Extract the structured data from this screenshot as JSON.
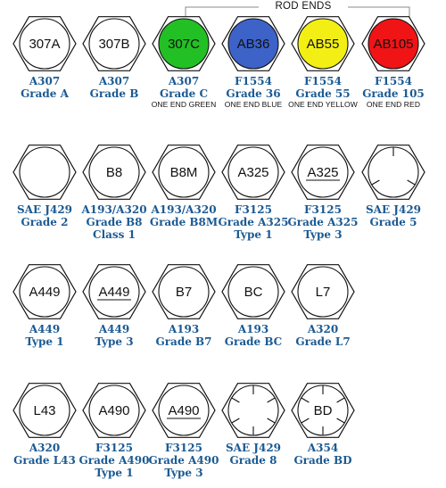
{
  "group_title": "ROD ENDS",
  "colors": {
    "caption": "#1b5a93",
    "green": "#22c025",
    "blue": "#3d62c8",
    "yellow": "#f3ef14",
    "red": "#f01416"
  },
  "markings": [
    {
      "code": "307A",
      "shape": "hex",
      "lines": [
        "A307",
        "Grade A"
      ]
    },
    {
      "code": "307B",
      "shape": "hex",
      "lines": [
        "A307",
        "Grade B"
      ]
    },
    {
      "code": "307C",
      "shape": "circle",
      "fill": "#22c025",
      "lines": [
        "A307",
        "Grade C"
      ],
      "note": "ONE END GREEN"
    },
    {
      "code": "AB36",
      "shape": "circle",
      "fill": "#3d62c8",
      "lines": [
        "F1554",
        "Grade 36"
      ],
      "note": "ONE END BLUE"
    },
    {
      "code": "AB55",
      "shape": "circle",
      "fill": "#f3ef14",
      "lines": [
        "F1554",
        "Grade 55"
      ],
      "note": "ONE END YELLOW"
    },
    {
      "code": "AB105",
      "shape": "circle",
      "fill": "#f01416",
      "lines": [
        "F1554",
        "Grade 105"
      ],
      "note": "ONE END RED"
    },
    {
      "code": "",
      "shape": "hex",
      "lines": [
        "SAE J429",
        "Grade 2"
      ]
    },
    {
      "code": "B8",
      "shape": "hex",
      "lines": [
        "A193/A320",
        "Grade B8",
        "Class 1"
      ]
    },
    {
      "code": "B8M",
      "shape": "hex",
      "lines": [
        "A193/A320",
        "Grade B8M"
      ]
    },
    {
      "code": "A325",
      "shape": "hex",
      "lines": [
        "F3125",
        "Grade A325",
        "Type 1"
      ]
    },
    {
      "code": "A325",
      "shape": "hex",
      "underline": true,
      "lines": [
        "F3125",
        "Grade A325",
        "Type 3"
      ]
    },
    {
      "code": "",
      "shape": "hex",
      "radial": 3,
      "lines": [
        "SAE J429",
        "Grade 5"
      ]
    },
    {
      "code": "A449",
      "shape": "hex",
      "lines": [
        "A449",
        "Type 1"
      ]
    },
    {
      "code": "A449",
      "shape": "hex",
      "underline": true,
      "lines": [
        "A449",
        "Type 3"
      ]
    },
    {
      "code": "B7",
      "shape": "hex",
      "lines": [
        "A193",
        "Grade B7"
      ]
    },
    {
      "code": "BC",
      "shape": "hex",
      "lines": [
        "A193",
        "Grade BC"
      ]
    },
    {
      "code": "L7",
      "shape": "hex",
      "lines": [
        "A320",
        "Grade L7"
      ]
    },
    {
      "code": "L43",
      "shape": "hex",
      "lines": [
        "A320",
        "Grade L43"
      ]
    },
    {
      "code": "A490",
      "shape": "hex",
      "lines": [
        "F3125",
        "Grade A490",
        "Type 1"
      ]
    },
    {
      "code": "A490",
      "shape": "hex",
      "underline": true,
      "lines": [
        "F3125",
        "Grade A490",
        "Type 3"
      ]
    },
    {
      "code": "",
      "shape": "hex",
      "radial": 6,
      "lines": [
        "SAE J429",
        "Grade 8"
      ]
    },
    {
      "code": "BD",
      "shape": "hex",
      "radial": 6,
      "lines": [
        "A354",
        "Grade BD"
      ]
    }
  ]
}
